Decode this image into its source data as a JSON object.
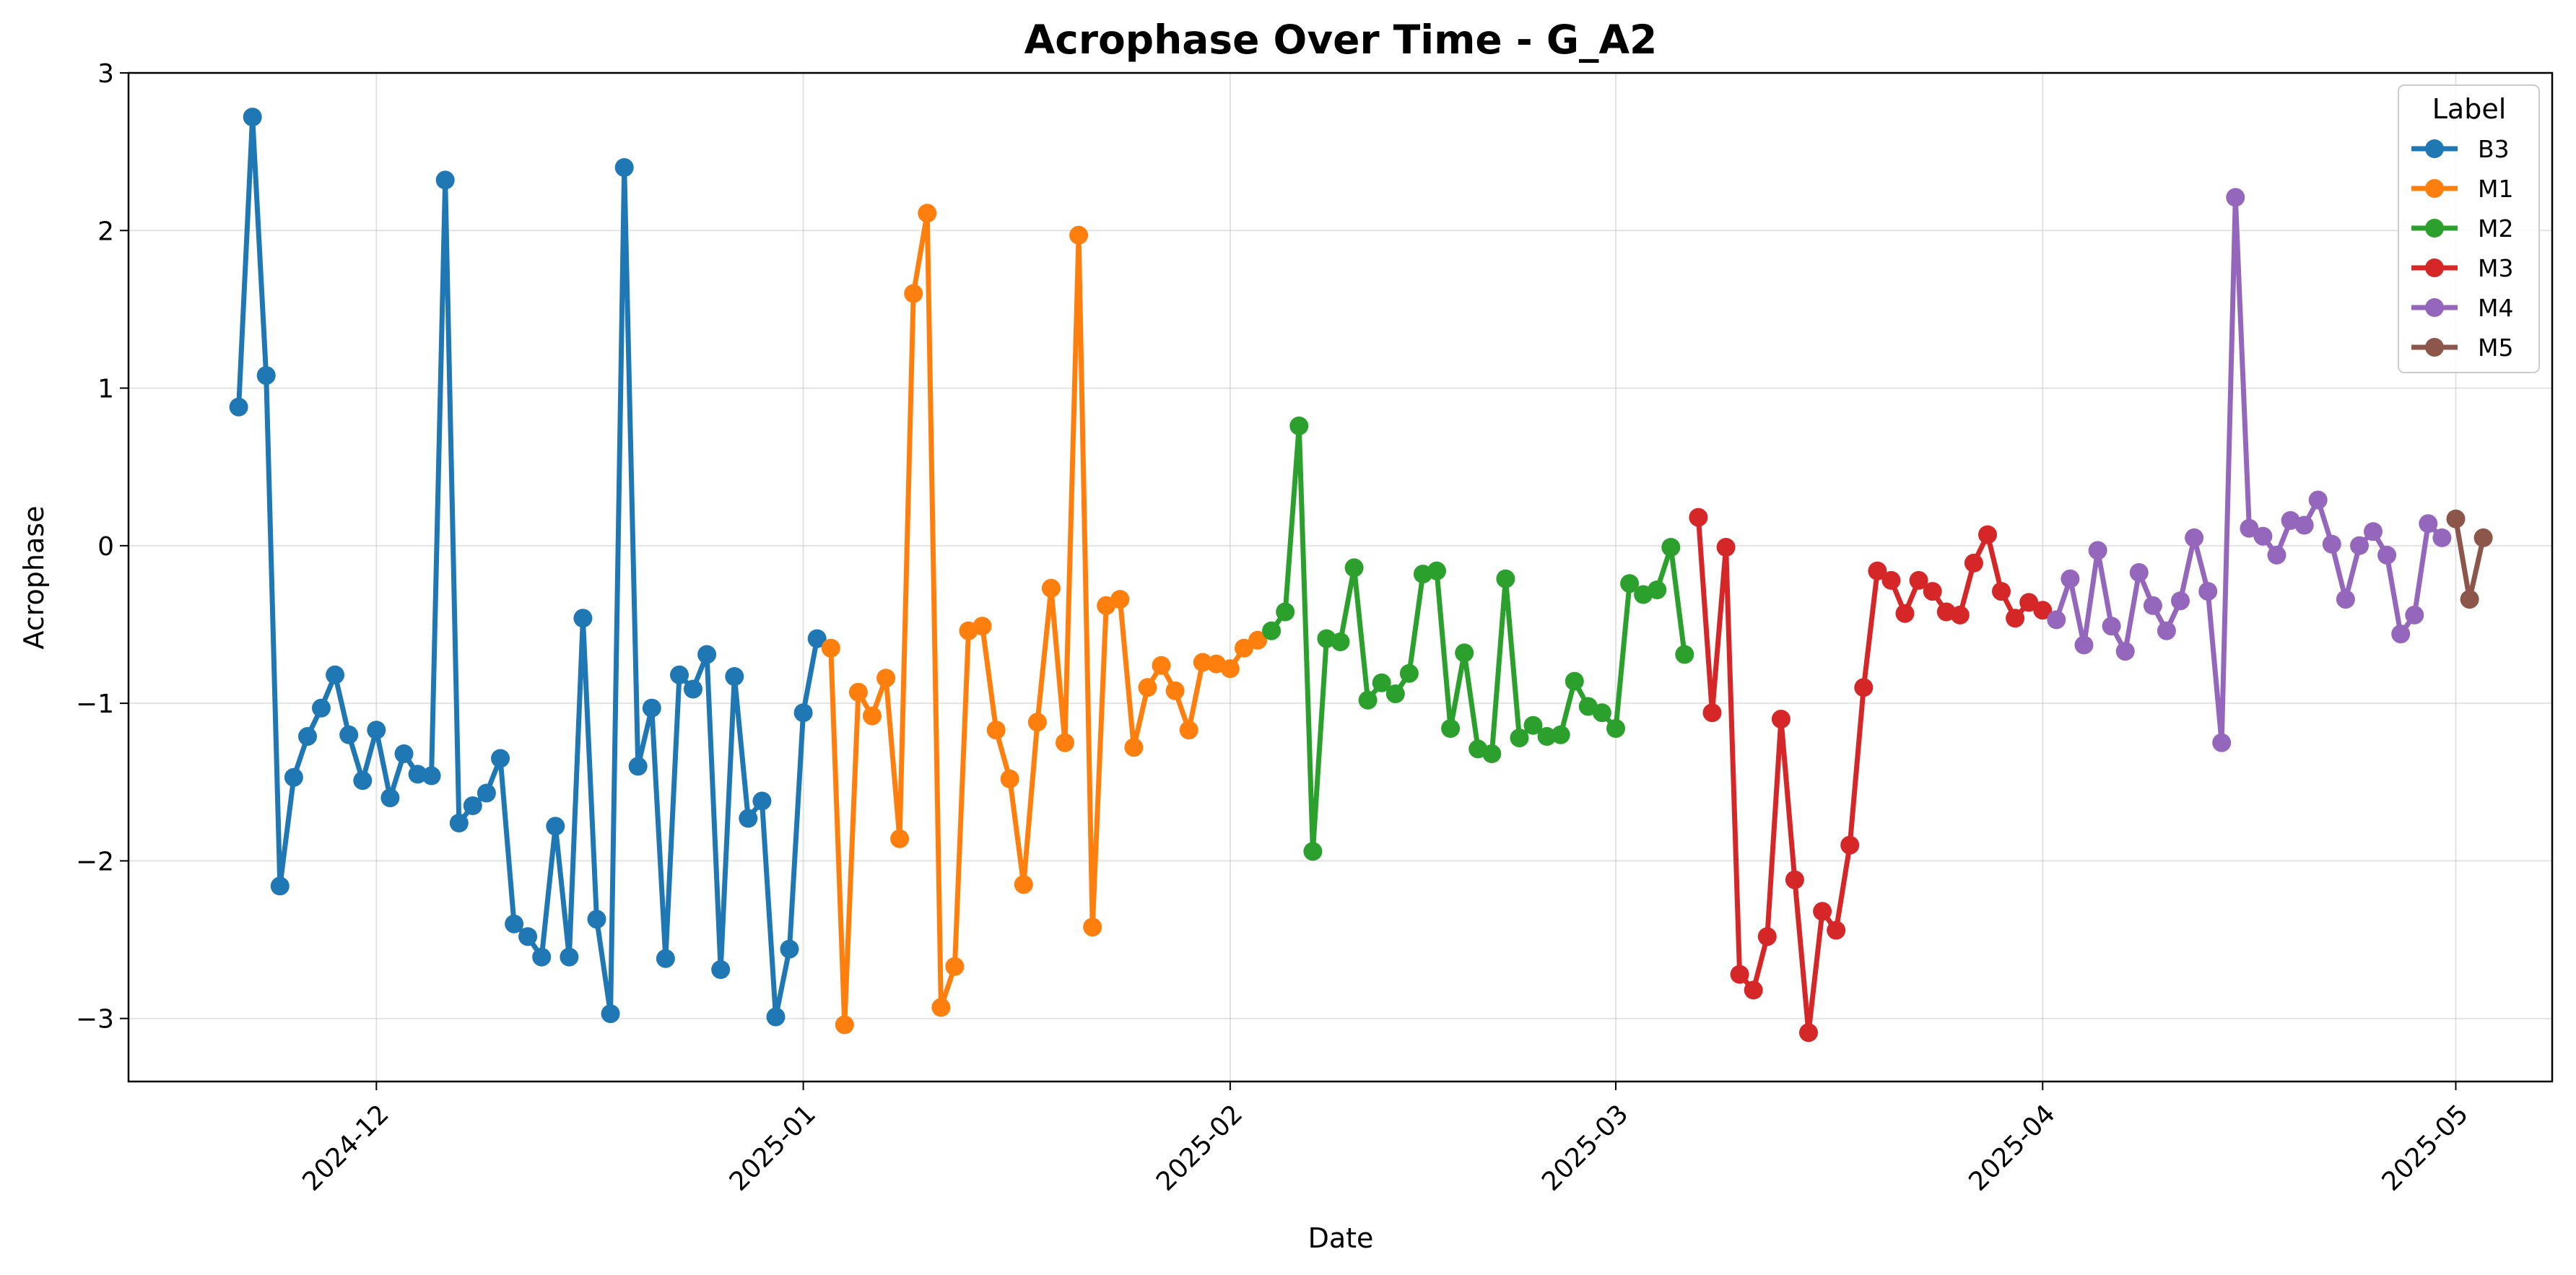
{
  "chart_data": {
    "type": "line",
    "title": "Acrophase Over Time - G_A2",
    "xlabel": "Date",
    "ylabel": "Acrophase",
    "xlim": [
      "2024-11-13",
      "2025-05-08"
    ],
    "ylim": [
      -3.4,
      3.0
    ],
    "x_ticks": [
      "2024-12-01",
      "2025-01-01",
      "2025-02-01",
      "2025-03-01",
      "2025-04-01",
      "2025-05-01"
    ],
    "x_tick_labels": [
      "2024-12",
      "2025-01",
      "2025-02",
      "2025-03",
      "2025-04",
      "2025-05"
    ],
    "y_ticks": [
      3,
      2,
      1,
      0,
      -1,
      -2,
      -3
    ],
    "y_tick_labels": [
      "3",
      "2",
      "1",
      "0",
      "−1",
      "−2",
      "−3"
    ],
    "grid": true,
    "legend": {
      "title": "Label",
      "position": "top-right"
    },
    "series": [
      {
        "name": "B3",
        "color": "#1f77b4",
        "points": [
          [
            "2024-11-21",
            0.88
          ],
          [
            "2024-11-22",
            2.72
          ],
          [
            "2024-11-23",
            1.08
          ],
          [
            "2024-11-24",
            -2.16
          ],
          [
            "2024-11-25",
            -1.47
          ],
          [
            "2024-11-26",
            -1.21
          ],
          [
            "2024-11-27",
            -1.03
          ],
          [
            "2024-11-28",
            -0.82
          ],
          [
            "2024-11-29",
            -1.2
          ],
          [
            "2024-11-30",
            -1.49
          ],
          [
            "2024-12-01",
            -1.17
          ],
          [
            "2024-12-02",
            -1.6
          ],
          [
            "2024-12-03",
            -1.32
          ],
          [
            "2024-12-04",
            -1.45
          ],
          [
            "2024-12-05",
            -1.46
          ],
          [
            "2024-12-06",
            2.32
          ],
          [
            "2024-12-07",
            -1.76
          ],
          [
            "2024-12-08",
            -1.65
          ],
          [
            "2024-12-09",
            -1.57
          ],
          [
            "2024-12-10",
            -1.35
          ],
          [
            "2024-12-11",
            -2.4
          ],
          [
            "2024-12-12",
            -2.48
          ],
          [
            "2024-12-13",
            -2.61
          ],
          [
            "2024-12-14",
            -1.78
          ],
          [
            "2024-12-15",
            -2.61
          ],
          [
            "2024-12-16",
            -0.46
          ],
          [
            "2024-12-17",
            -2.37
          ],
          [
            "2024-12-18",
            -2.97
          ],
          [
            "2024-12-19",
            2.4
          ],
          [
            "2024-12-20",
            -1.4
          ],
          [
            "2024-12-21",
            -1.03
          ],
          [
            "2024-12-22",
            -2.62
          ],
          [
            "2024-12-23",
            -0.82
          ],
          [
            "2024-12-24",
            -0.91
          ],
          [
            "2024-12-25",
            -0.69
          ],
          [
            "2024-12-26",
            -2.69
          ],
          [
            "2024-12-27",
            -0.83
          ],
          [
            "2024-12-28",
            -1.73
          ],
          [
            "2024-12-29",
            -1.62
          ],
          [
            "2024-12-30",
            -2.99
          ],
          [
            "2024-12-31",
            -2.56
          ],
          [
            "2025-01-01",
            -1.06
          ],
          [
            "2025-01-02",
            -0.59
          ]
        ]
      },
      {
        "name": "M1",
        "color": "#ff7f0e",
        "points": [
          [
            "2025-01-03",
            -0.65
          ],
          [
            "2025-01-04",
            -3.04
          ],
          [
            "2025-01-05",
            -0.93
          ],
          [
            "2025-01-06",
            -1.08
          ],
          [
            "2025-01-07",
            -0.84
          ],
          [
            "2025-01-08",
            -1.86
          ],
          [
            "2025-01-09",
            1.6
          ],
          [
            "2025-01-10",
            2.11
          ],
          [
            "2025-01-11",
            -2.93
          ],
          [
            "2025-01-12",
            -2.67
          ],
          [
            "2025-01-13",
            -0.54
          ],
          [
            "2025-01-14",
            -0.51
          ],
          [
            "2025-01-15",
            -1.17
          ],
          [
            "2025-01-16",
            -1.48
          ],
          [
            "2025-01-17",
            -2.15
          ],
          [
            "2025-01-18",
            -1.12
          ],
          [
            "2025-01-19",
            -0.27
          ],
          [
            "2025-01-20",
            -1.25
          ],
          [
            "2025-01-21",
            1.97
          ],
          [
            "2025-01-22",
            -2.42
          ],
          [
            "2025-01-23",
            -0.38
          ],
          [
            "2025-01-24",
            -0.34
          ],
          [
            "2025-01-25",
            -1.28
          ],
          [
            "2025-01-26",
            -0.9
          ],
          [
            "2025-01-27",
            -0.76
          ],
          [
            "2025-01-28",
            -0.92
          ],
          [
            "2025-01-29",
            -1.17
          ],
          [
            "2025-01-30",
            -0.74
          ],
          [
            "2025-01-31",
            -0.75
          ],
          [
            "2025-02-01",
            -0.78
          ],
          [
            "2025-02-02",
            -0.65
          ],
          [
            "2025-02-03",
            -0.6
          ]
        ]
      },
      {
        "name": "M2",
        "color": "#2ca02c",
        "points": [
          [
            "2025-02-04",
            -0.54
          ],
          [
            "2025-02-05",
            -0.42
          ],
          [
            "2025-02-06",
            0.76
          ],
          [
            "2025-02-07",
            -1.94
          ],
          [
            "2025-02-08",
            -0.59
          ],
          [
            "2025-02-09",
            -0.61
          ],
          [
            "2025-02-10",
            -0.14
          ],
          [
            "2025-02-11",
            -0.98
          ],
          [
            "2025-02-12",
            -0.87
          ],
          [
            "2025-02-13",
            -0.94
          ],
          [
            "2025-02-14",
            -0.81
          ],
          [
            "2025-02-15",
            -0.18
          ],
          [
            "2025-02-16",
            -0.16
          ],
          [
            "2025-02-17",
            -1.16
          ],
          [
            "2025-02-18",
            -0.68
          ],
          [
            "2025-02-19",
            -1.29
          ],
          [
            "2025-02-20",
            -1.32
          ],
          [
            "2025-02-21",
            -0.21
          ],
          [
            "2025-02-22",
            -1.22
          ],
          [
            "2025-02-23",
            -1.14
          ],
          [
            "2025-02-24",
            -1.21
          ],
          [
            "2025-02-25",
            -1.2
          ],
          [
            "2025-02-26",
            -0.86
          ],
          [
            "2025-02-27",
            -1.02
          ],
          [
            "2025-02-28",
            -1.06
          ],
          [
            "2025-03-01",
            -1.16
          ],
          [
            "2025-03-02",
            -0.24
          ],
          [
            "2025-03-03",
            -0.31
          ],
          [
            "2025-03-04",
            -0.28
          ],
          [
            "2025-03-05",
            -0.01
          ],
          [
            "2025-03-06",
            -0.69
          ]
        ]
      },
      {
        "name": "M3",
        "color": "#d62728",
        "points": [
          [
            "2025-03-07",
            0.18
          ],
          [
            "2025-03-08",
            -1.06
          ],
          [
            "2025-03-09",
            -0.01
          ],
          [
            "2025-03-10",
            -2.72
          ],
          [
            "2025-03-11",
            -2.82
          ],
          [
            "2025-03-12",
            -2.48
          ],
          [
            "2025-03-13",
            -1.1
          ],
          [
            "2025-03-14",
            -2.12
          ],
          [
            "2025-03-15",
            -3.09
          ],
          [
            "2025-03-16",
            -2.32
          ],
          [
            "2025-03-17",
            -2.44
          ],
          [
            "2025-03-18",
            -1.9
          ],
          [
            "2025-03-19",
            -0.9
          ],
          [
            "2025-03-20",
            -0.16
          ],
          [
            "2025-03-21",
            -0.22
          ],
          [
            "2025-03-22",
            -0.43
          ],
          [
            "2025-03-23",
            -0.22
          ],
          [
            "2025-03-24",
            -0.29
          ],
          [
            "2025-03-25",
            -0.42
          ],
          [
            "2025-03-26",
            -0.44
          ],
          [
            "2025-03-27",
            -0.11
          ],
          [
            "2025-03-28",
            0.07
          ],
          [
            "2025-03-29",
            -0.29
          ],
          [
            "2025-03-30",
            -0.46
          ],
          [
            "2025-03-31",
            -0.36
          ],
          [
            "2025-04-01",
            -0.41
          ]
        ]
      },
      {
        "name": "M4",
        "color": "#9467bd",
        "points": [
          [
            "2025-04-02",
            -0.47
          ],
          [
            "2025-04-03",
            -0.21
          ],
          [
            "2025-04-04",
            -0.63
          ],
          [
            "2025-04-05",
            -0.03
          ],
          [
            "2025-04-06",
            -0.51
          ],
          [
            "2025-04-07",
            -0.67
          ],
          [
            "2025-04-08",
            -0.17
          ],
          [
            "2025-04-09",
            -0.38
          ],
          [
            "2025-04-10",
            -0.54
          ],
          [
            "2025-04-11",
            -0.35
          ],
          [
            "2025-04-12",
            0.05
          ],
          [
            "2025-04-13",
            -0.29
          ],
          [
            "2025-04-14",
            -1.25
          ],
          [
            "2025-04-15",
            2.21
          ],
          [
            "2025-04-16",
            0.11
          ],
          [
            "2025-04-17",
            0.06
          ],
          [
            "2025-04-18",
            -0.06
          ],
          [
            "2025-04-19",
            0.16
          ],
          [
            "2025-04-20",
            0.13
          ],
          [
            "2025-04-21",
            0.29
          ],
          [
            "2025-04-22",
            0.01
          ],
          [
            "2025-04-23",
            -0.34
          ],
          [
            "2025-04-24",
            0.0
          ],
          [
            "2025-04-25",
            0.09
          ],
          [
            "2025-04-26",
            -0.06
          ],
          [
            "2025-04-27",
            -0.56
          ],
          [
            "2025-04-28",
            -0.44
          ],
          [
            "2025-04-29",
            0.14
          ],
          [
            "2025-04-30",
            0.05
          ]
        ]
      },
      {
        "name": "M5",
        "color": "#8c564b",
        "points": [
          [
            "2025-05-01",
            0.17
          ],
          [
            "2025-05-02",
            -0.34
          ],
          [
            "2025-05-03",
            0.05
          ]
        ]
      }
    ]
  }
}
